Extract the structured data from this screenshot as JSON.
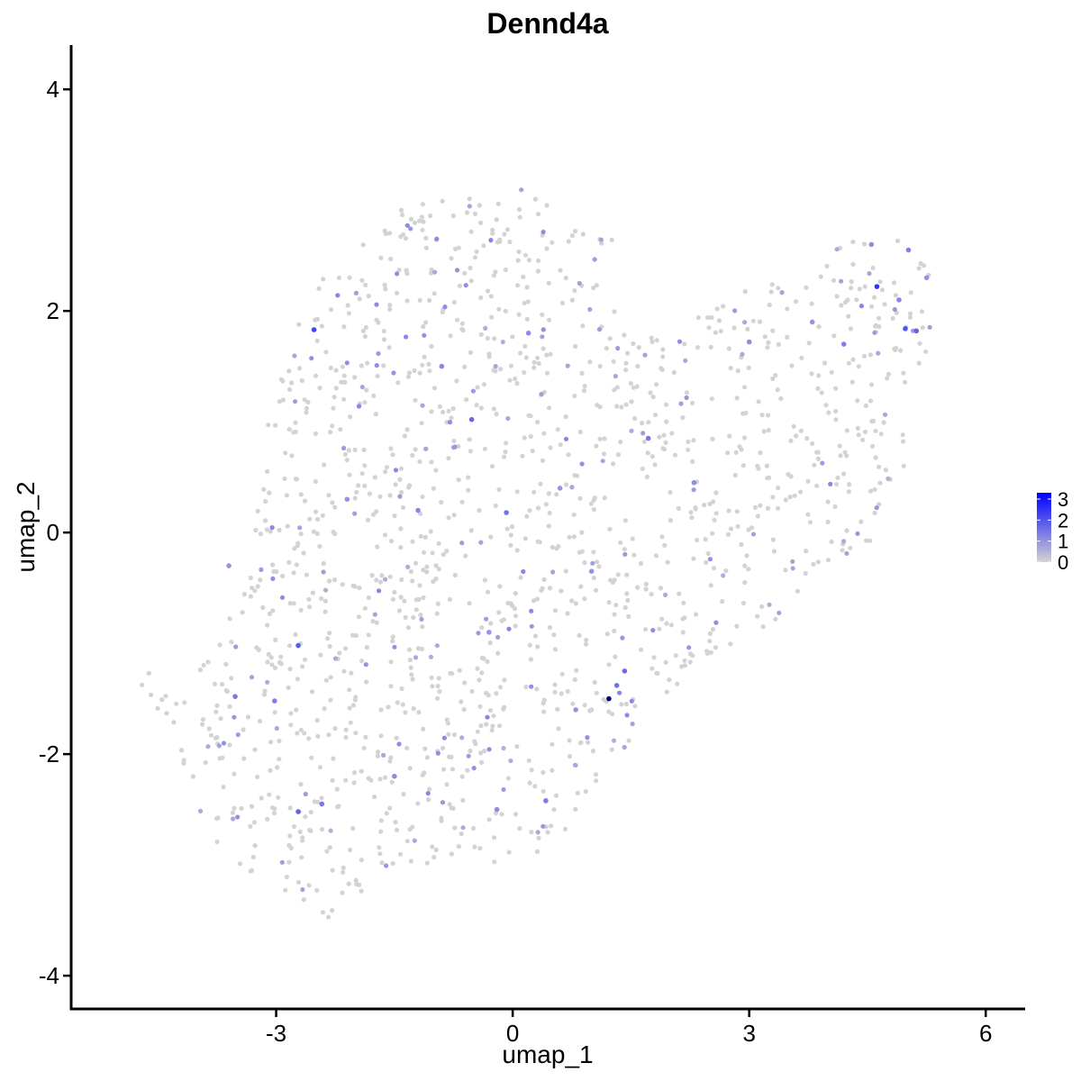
{
  "chart_data": {
    "type": "scatter",
    "title": "Dennd4a",
    "xlabel": "umap_1",
    "ylabel": "umap_2",
    "xlim": [
      -5.6,
      6.5
    ],
    "ylim": [
      -4.3,
      4.4
    ],
    "x_ticks": [
      -3,
      0,
      3,
      6
    ],
    "y_ticks": [
      -4,
      -2,
      0,
      2,
      4
    ],
    "x_tick_labels": [
      "-3",
      "0",
      "3",
      "6"
    ],
    "y_tick_labels": [
      "-4",
      "-2",
      "0",
      "2",
      "4"
    ],
    "grid": false,
    "legend": {
      "placement": "right",
      "type": "colorbar",
      "ticks": [
        3,
        2,
        1,
        0
      ],
      "tick_labels": [
        "3",
        "2",
        "1",
        "0"
      ],
      "min": 0,
      "max": 3.3
    },
    "colors": {
      "low": "#d3d3d3",
      "high": "#0000ff",
      "max_point": "#00008b"
    },
    "highlighted_points": [
      {
        "x": 1.22,
        "y": -1.5,
        "value": 3.3
      },
      {
        "x": 4.62,
        "y": 2.22,
        "value": 2.3
      },
      {
        "x": 4.98,
        "y": 1.84,
        "value": 1.8
      },
      {
        "x": 5.12,
        "y": 1.82,
        "value": 1.6
      },
      {
        "x": -2.52,
        "y": 1.83,
        "value": 2.0
      },
      {
        "x": -2.72,
        "y": -1.02,
        "value": 1.7
      },
      {
        "x": -2.72,
        "y": -2.52,
        "value": 1.6
      },
      {
        "x": -0.52,
        "y": 1.02,
        "value": 1.5
      },
      {
        "x": -0.08,
        "y": 0.18,
        "value": 1.4
      },
      {
        "x": 1.42,
        "y": -1.25,
        "value": 1.5
      },
      {
        "x": 1.32,
        "y": -1.38,
        "value": 1.4
      },
      {
        "x": -3.52,
        "y": -1.48,
        "value": 1.3
      },
      {
        "x": -3.02,
        "y": -1.52,
        "value": 1.2
      },
      {
        "x": -2.42,
        "y": -2.45,
        "value": 1.3
      },
      {
        "x": 0.42,
        "y": -2.42,
        "value": 1.2
      },
      {
        "x": 1.72,
        "y": 0.85,
        "value": 1.3
      },
      {
        "x": 4.2,
        "y": 1.7,
        "value": 1.2
      },
      {
        "x": 5.02,
        "y": 2.55,
        "value": 1.2
      },
      {
        "x": -1.2,
        "y": 0.2,
        "value": 1.1
      },
      {
        "x": -0.9,
        "y": 1.5,
        "value": 1.1
      },
      {
        "x": 0.2,
        "y": 1.8,
        "value": 1.0
      },
      {
        "x": 2.3,
        "y": 0.45,
        "value": 1.0
      },
      {
        "x": 3.0,
        "y": 1.72,
        "value": 1.0
      },
      {
        "x": -1.5,
        "y": -2.2,
        "value": 1.0
      },
      {
        "x": -0.2,
        "y": -2.5,
        "value": 1.0
      },
      {
        "x": 0.8,
        "y": -1.6,
        "value": 0.9
      },
      {
        "x": 1.0,
        "y": -0.35,
        "value": 0.9
      },
      {
        "x": -2.1,
        "y": 0.3,
        "value": 0.9
      },
      {
        "x": -3.6,
        "y": -0.3,
        "value": 0.9
      },
      {
        "x": 4.9,
        "y": 2.1,
        "value": 1.1
      },
      {
        "x": 4.55,
        "y": 2.6,
        "value": 1.0
      },
      {
        "x": 5.25,
        "y": 2.3,
        "value": 0.9
      },
      {
        "x": 3.8,
        "y": 1.9,
        "value": 0.9
      },
      {
        "x": -0.3,
        "y": -0.9,
        "value": 0.9
      },
      {
        "x": 0.6,
        "y": 0.4,
        "value": 0.9
      }
    ]
  }
}
